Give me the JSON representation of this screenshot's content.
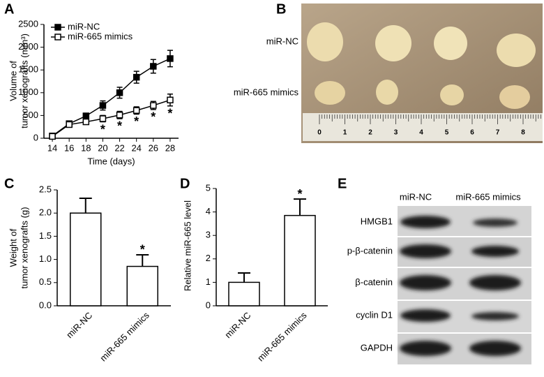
{
  "panel_labels": [
    "A",
    "B",
    "C",
    "D",
    "E"
  ],
  "chart_data": [
    {
      "type": "line",
      "xlabel": "Time (days)",
      "ylabel": [
        "Volume of",
        "tumor xenografts (mm³)"
      ],
      "x": [
        14,
        16,
        18,
        20,
        22,
        24,
        26,
        28
      ],
      "series": [
        {
          "name": "miR-NC",
          "color": "#000000",
          "marker": "square-filled",
          "values": [
            50,
            320,
            490,
            720,
            1000,
            1340,
            1580,
            1750
          ],
          "errors": [
            30,
            50,
            60,
            100,
            120,
            130,
            150,
            180
          ]
        },
        {
          "name": "miR-665 mimics",
          "color": "#000000",
          "marker": "square-open",
          "values": [
            40,
            300,
            360,
            430,
            510,
            610,
            720,
            840
          ],
          "errors": [
            20,
            40,
            50,
            70,
            80,
            80,
            90,
            130
          ],
          "annotations": [
            null,
            null,
            null,
            "*",
            "*",
            "*",
            "*",
            "*"
          ]
        }
      ],
      "xlim": [
        13,
        29
      ],
      "xticks": [
        14,
        16,
        18,
        20,
        22,
        24,
        26,
        28
      ],
      "ylim": [
        0,
        2500
      ],
      "yticks": [
        0,
        500,
        1000,
        1500,
        2000,
        2500
      ],
      "legend": "upper left"
    },
    {
      "type": "bar",
      "ylabel": [
        "Weight of",
        "tumor xenografts (g)"
      ],
      "categories": [
        "miR-NC",
        "miR-665 mimics"
      ],
      "values": [
        2.0,
        0.85
      ],
      "errors": [
        0.32,
        0.25
      ],
      "annotations": [
        null,
        "*"
      ],
      "color": "#ffffff",
      "ylim": [
        0,
        2.5
      ],
      "yticks": [
        {
          "value": 0,
          "label": "0.0"
        },
        {
          "value": 0.5,
          "label": "0.5"
        },
        {
          "value": 1,
          "label": "1.0"
        },
        {
          "value": 1.5,
          "label": "1.5"
        },
        {
          "value": 2,
          "label": "2.0"
        },
        {
          "value": 2.5,
          "label": "2.5"
        }
      ]
    },
    {
      "type": "bar",
      "ylabel": [
        "Relative miR-665 level"
      ],
      "categories": [
        "miR-NC",
        "miR-665 mimics"
      ],
      "values": [
        1.0,
        3.85
      ],
      "errors": [
        0.4,
        0.7
      ],
      "annotations": [
        null,
        "*"
      ],
      "color": "#ffffff",
      "ylim": [
        0,
        5
      ],
      "yticks": [
        0,
        1,
        2,
        3,
        4,
        5
      ]
    }
  ],
  "photo": {
    "rows": [
      "miR-NC",
      "miR-665 mimics"
    ],
    "ruler": [
      "0",
      "1",
      "2",
      "3",
      "4",
      "5",
      "6",
      "7",
      "8"
    ]
  },
  "blot": {
    "columns": [
      "miR-NC",
      "miR-665 mimics"
    ],
    "rows": [
      "HMGB1",
      "p-β-catenin",
      "β-catenin",
      "cyclin D1",
      "GAPDH"
    ]
  }
}
